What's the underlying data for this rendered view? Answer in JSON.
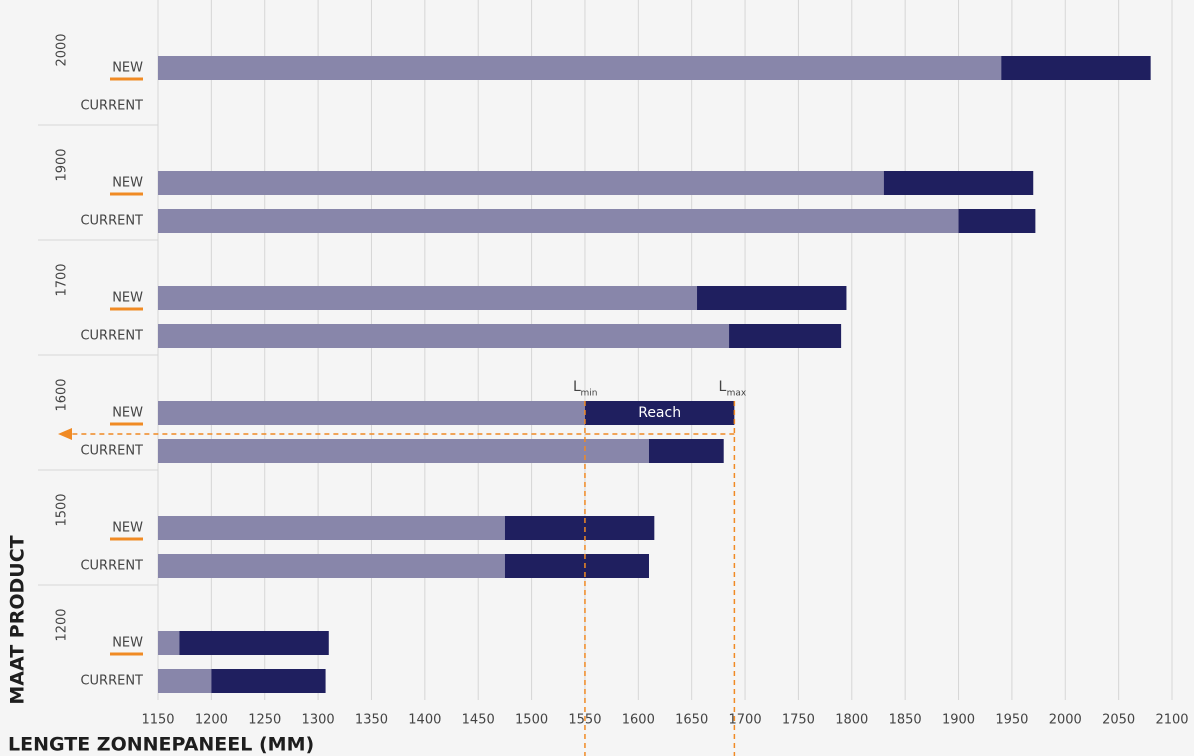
{
  "chart_data": {
    "type": "range_bar",
    "xlabel": "LENGTE ZONNEPANEEL (MM)",
    "ylabel": "MAAT PRODUCT",
    "xlim": [
      1150,
      2100
    ],
    "xticks": [
      1150,
      1200,
      1250,
      1300,
      1350,
      1400,
      1450,
      1500,
      1550,
      1600,
      1650,
      1700,
      1750,
      1800,
      1850,
      1900,
      1950,
      2000,
      2050,
      2100
    ],
    "min_color": "#8886aa",
    "max_color": "#1f1f5f",
    "guide_color": "#f08a24",
    "grid": true,
    "groups": [
      {
        "size": "2000",
        "rows": [
          {
            "label": "NEW",
            "min": 1940,
            "max": 2080
          },
          {
            "label": "CURRENT",
            "min": null,
            "max": null
          }
        ]
      },
      {
        "size": "1900",
        "rows": [
          {
            "label": "NEW",
            "min": 1830,
            "max": 1970
          },
          {
            "label": "CURRENT",
            "min": 1900,
            "max": 1972
          }
        ]
      },
      {
        "size": "1700",
        "rows": [
          {
            "label": "NEW",
            "min": 1655,
            "max": 1795
          },
          {
            "label": "CURRENT",
            "min": 1685,
            "max": 1790
          }
        ]
      },
      {
        "size": "1600",
        "rows": [
          {
            "label": "NEW",
            "min": 1550,
            "max": 1690
          },
          {
            "label": "CURRENT",
            "min": 1610,
            "max": 1680
          }
        ]
      },
      {
        "size": "1500",
        "rows": [
          {
            "label": "NEW",
            "min": 1475,
            "max": 1615
          },
          {
            "label": "CURRENT",
            "min": 1475,
            "max": 1610
          }
        ]
      },
      {
        "size": "1200",
        "rows": [
          {
            "label": "NEW",
            "min": 1170,
            "max": 1310
          },
          {
            "label": "CURRENT",
            "min": 1200,
            "max": 1307
          }
        ]
      }
    ],
    "annotations": {
      "l": "L",
      "min_sub": "min",
      "max_sub": "max",
      "reach": "Reach"
    },
    "annotated_group": 3
  }
}
